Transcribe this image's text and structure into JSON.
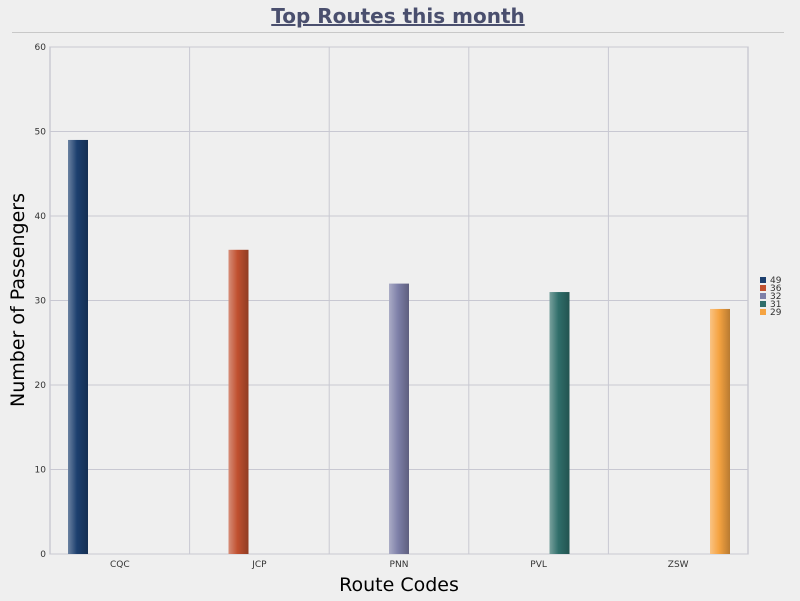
{
  "chart_data": {
    "type": "bar",
    "title": "Top Routes this month",
    "xlabel": "Route Codes",
    "ylabel": "Number of Passengers",
    "categories": [
      "CQC",
      "JCP",
      "PNN",
      "PVL",
      "ZSW"
    ],
    "values": [
      49,
      36,
      32,
      31,
      29
    ],
    "ylim": [
      0,
      60
    ],
    "yticks": [
      0,
      10,
      20,
      30,
      40,
      50,
      60
    ],
    "grid": true,
    "legend_position": "right",
    "legend": [
      "49",
      "36",
      "32",
      "31",
      "29"
    ],
    "colors": [
      "#1c3f6e",
      "#c0502f",
      "#7d7fa8",
      "#2f6e6a",
      "#f5a341"
    ]
  }
}
